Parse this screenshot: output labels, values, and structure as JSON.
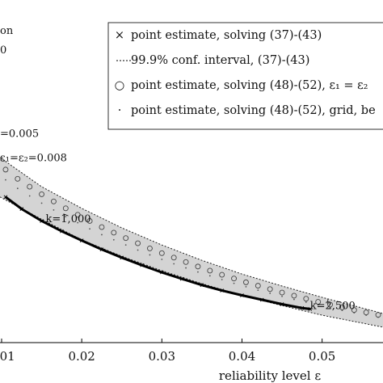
{
  "chart_data": {
    "type": "scatter",
    "xlabel": "reliability level ε",
    "x_ticks": [
      {
        "value": 0.01,
        "label": "0.01"
      },
      {
        "value": 0.02,
        "label": "0.02"
      },
      {
        "value": 0.03,
        "label": "0.03"
      },
      {
        "value": 0.04,
        "label": "0.04"
      },
      {
        "value": 0.05,
        "label": "0.05"
      }
    ],
    "xlim": [
      0.0098,
      0.0576
    ],
    "ylim": [
      0.0,
      1.0
    ],
    "grid": false,
    "legend_position": "top-right",
    "legend": [
      {
        "marker": "×",
        "label": "point estimate, solving (37)-(43)"
      },
      {
        "marker": "dotted-line",
        "label": "99.9% conf. interval, (37)-(43)"
      },
      {
        "marker": "○",
        "label": "point estimate, solving (48)-(52), ε₁ = ε₂"
      },
      {
        "marker": "·",
        "label": "point estimate, solving (48)-(52), grid, be"
      }
    ],
    "series": [
      {
        "name": "point estimate, solving (37)-(43)",
        "x": [
          0.0105,
          0.0125,
          0.015,
          0.0175,
          0.02,
          0.0225,
          0.025,
          0.0275,
          0.03,
          0.0325,
          0.035,
          0.0375,
          0.04,
          0.0425,
          0.045,
          0.0475,
          0.0485
        ],
        "y": [
          0.425,
          0.39,
          0.355,
          0.325,
          0.298,
          0.272,
          0.248,
          0.226,
          0.205,
          0.186,
          0.168,
          0.152,
          0.138,
          0.125,
          0.112,
          0.101,
          0.098
        ]
      },
      {
        "name": "99.9% conf. interval upper",
        "x": [
          0.0098,
          0.015,
          0.02,
          0.025,
          0.03,
          0.035,
          0.04,
          0.045,
          0.05,
          0.0576
        ],
        "y": [
          0.54,
          0.455,
          0.392,
          0.335,
          0.285,
          0.24,
          0.2,
          0.165,
          0.132,
          0.085
        ]
      },
      {
        "name": "99.9% conf. interval lower",
        "x": [
          0.0098,
          0.015,
          0.02,
          0.025,
          0.03,
          0.035,
          0.04,
          0.045,
          0.05,
          0.0576
        ],
        "y": [
          0.425,
          0.36,
          0.3,
          0.252,
          0.21,
          0.172,
          0.138,
          0.108,
          0.08,
          0.045
        ]
      },
      {
        "name": "point estimate, solving (48)-(52), ε₁ = ε₂",
        "x": [
          0.0105,
          0.012,
          0.0135,
          0.015,
          0.0165,
          0.018,
          0.0195,
          0.021,
          0.0225,
          0.024,
          0.0255,
          0.027,
          0.0285,
          0.03,
          0.0315,
          0.033,
          0.0345,
          0.036,
          0.0375,
          0.039,
          0.0405,
          0.042,
          0.0435,
          0.045,
          0.0465,
          0.048,
          0.0495,
          0.051,
          0.0525,
          0.054,
          0.0555,
          0.057
        ],
        "y": [
          0.505,
          0.478,
          0.455,
          0.433,
          0.412,
          0.392,
          0.373,
          0.355,
          0.337,
          0.321,
          0.305,
          0.29,
          0.275,
          0.261,
          0.248,
          0.235,
          0.222,
          0.21,
          0.198,
          0.187,
          0.176,
          0.166,
          0.156,
          0.146,
          0.137,
          0.128,
          0.119,
          0.111,
          0.103,
          0.095,
          0.088,
          0.081
        ]
      },
      {
        "name": "point estimate, solving (48)-(52), grid, be",
        "x": [
          0.0105,
          0.012,
          0.0135,
          0.015,
          0.0165,
          0.018,
          0.0195,
          0.021,
          0.0225,
          0.024,
          0.0255,
          0.027,
          0.0285,
          0.03,
          0.0315,
          0.033,
          0.0345,
          0.036,
          0.0375,
          0.039,
          0.0405,
          0.042,
          0.0435,
          0.045,
          0.0465,
          0.048,
          0.0495,
          0.051,
          0.0525,
          0.054,
          0.0555,
          0.057
        ],
        "y": [
          0.475,
          0.45,
          0.428,
          0.407,
          0.387,
          0.368,
          0.35,
          0.332,
          0.315,
          0.3,
          0.285,
          0.27,
          0.256,
          0.243,
          0.23,
          0.218,
          0.206,
          0.195,
          0.184,
          0.173,
          0.163,
          0.153,
          0.144,
          0.135,
          0.126,
          0.118,
          0.11,
          0.102,
          0.094,
          0.087,
          0.08,
          0.074
        ]
      }
    ],
    "annotations": [
      {
        "text": "=0.005",
        "x": 0.0098,
        "y": 0.6
      },
      {
        "text": "ε₁=ε₂=0.008",
        "x": 0.0098,
        "y": 0.53
      },
      {
        "text": "k=1,000",
        "x": 0.0155,
        "y": 0.352
      },
      {
        "text": "k=2,500",
        "x": 0.0485,
        "y": 0.098
      }
    ],
    "clipped_text": [
      "on",
      "0"
    ]
  }
}
